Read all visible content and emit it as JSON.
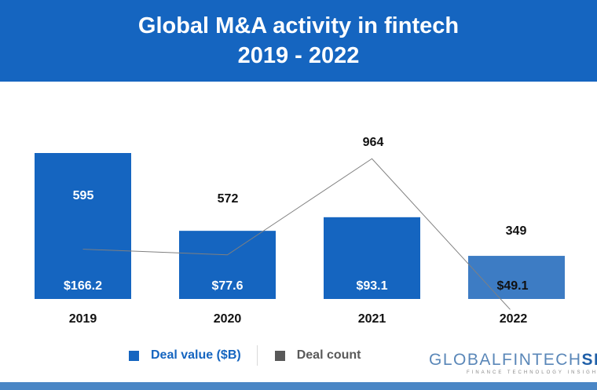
{
  "title": {
    "line1": "Global M&A activity in fintech",
    "line2": "2019 - 2022"
  },
  "chart_data": {
    "type": "bar",
    "categories": [
      "2019",
      "2020",
      "2021",
      "2022"
    ],
    "series": [
      {
        "name": "Deal value ($B)",
        "chart": "bar",
        "values": [
          166.2,
          77.6,
          93.1,
          49.1
        ],
        "labels": [
          "$166.2",
          "$77.6",
          "$93.1",
          "$49.1"
        ]
      },
      {
        "name": "Deal count",
        "chart": "line",
        "values": [
          595,
          572,
          964,
          349
        ],
        "labels": [
          "595",
          "572",
          "964",
          "349"
        ]
      }
    ],
    "grid": false,
    "legend": "bottom"
  },
  "colors": {
    "header": "#1565c0",
    "bar": "#1565c0",
    "bar_highlight": "#3d7cc4",
    "line": "#808080",
    "text": "#111111"
  },
  "logo": {
    "main_light": "GLOBALFINTECH",
    "main_bold": "SE",
    "tagline": "FINANCE TECHNOLOGY INSIGHTS"
  }
}
